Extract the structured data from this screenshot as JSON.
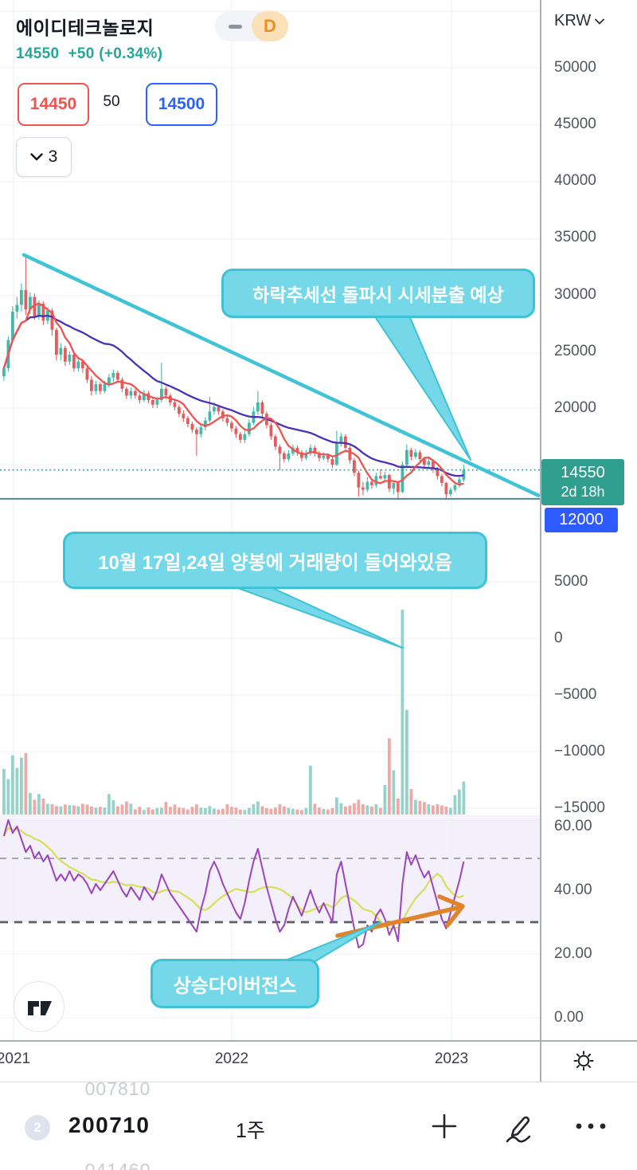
{
  "header": {
    "symbol": "에이디테크놀로지",
    "toggle": {
      "timeframe": "D"
    },
    "last_price": "14550",
    "change": "+50 (+0.34%)",
    "bid": "14450",
    "spread": "50",
    "ask": "14500",
    "object_count": "3"
  },
  "price_axis": {
    "currency": "KRW",
    "labels": [
      "50000",
      "45000",
      "40000",
      "35000",
      "30000",
      "25000",
      "20000"
    ],
    "current_badge": {
      "price": "14550",
      "countdown": "2d 18h"
    },
    "level_badge": "12000"
  },
  "volume_axis": {
    "labels": [
      "5000",
      "0",
      "−5000",
      "−10000",
      "−15000"
    ]
  },
  "oscillator_axis": {
    "labels": [
      "60.00",
      "40.00",
      "20.00",
      "0.00"
    ]
  },
  "time_axis": {
    "labels": [
      "2021",
      "2022",
      "2023"
    ]
  },
  "annotations": {
    "trend_callout": "하락추세선 돌파시 시세분출 예상",
    "volume_callout": "10월 17일,24일 양봉에 거래량이 들어와있음",
    "divergence_callout": "상승다이버전스"
  },
  "bottom_bar": {
    "prev_item": "007810",
    "badge": "2",
    "code": "200710",
    "interval": "1주",
    "next_item": "041460"
  },
  "colors": {
    "up": "#45b8ac",
    "down": "#e25d5d",
    "vol_up": "#95d2c9",
    "vol_down": "#f0a8a4",
    "ma_fast": "#ef5350",
    "ma_slow": "#4b30b8",
    "rsi": "#9b44bb",
    "rsi_signal": "#d6e05c",
    "trendline": "#3fc4d6",
    "callout_fill": "#74d8e8",
    "callout_border": "#3ec2d5",
    "badge_teal": "#2f9e8f",
    "badge_blue": "#2d5bff",
    "accent_up_text": "#26a69a",
    "support_line": "#4e8796",
    "arrow": "#e0832a",
    "band_bg": "rgba(147,112,219,0.10)",
    "bid": "#ef5350",
    "ask": "#2962ff"
  },
  "chart_data": {
    "type": "candlestick+volume+oscillator",
    "title": "에이디테크놀로지 weekly chart",
    "interval": "1 week",
    "x_axis_years": [
      "2021",
      "2022",
      "2023"
    ],
    "price_axis_ticks": [
      50000,
      45000,
      40000,
      35000,
      30000,
      25000,
      20000
    ],
    "current_price": 14550,
    "support_level": 12000,
    "trendline": {
      "start_price": 33500,
      "end_price": 12300,
      "style": "descending"
    },
    "oscillator_dashed_levels": [
      50,
      30
    ],
    "ma_periods": {
      "fast": 6,
      "slow": 24,
      "oscillator_signal": 9
    },
    "candles_ohlc": [
      [
        22800,
        23700,
        22400,
        23500
      ],
      [
        23500,
        26300,
        23200,
        26000
      ],
      [
        26000,
        29000,
        25800,
        28500
      ],
      [
        28500,
        29800,
        27900,
        29100
      ],
      [
        29100,
        31000,
        28500,
        30400
      ],
      [
        30400,
        33500,
        28200,
        28700
      ],
      [
        28700,
        30200,
        28300,
        29800
      ],
      [
        29800,
        30100,
        27800,
        28100
      ],
      [
        28100,
        29500,
        27800,
        29200
      ],
      [
        29200,
        29400,
        27300,
        27700
      ],
      [
        27700,
        28900,
        27400,
        28600
      ],
      [
        28600,
        28800,
        26400,
        26900
      ],
      [
        26900,
        27100,
        24200,
        24700
      ],
      [
        24700,
        25700,
        24200,
        25300
      ],
      [
        25300,
        25500,
        23700,
        24100
      ],
      [
        24100,
        25000,
        23800,
        24700
      ],
      [
        24700,
        24900,
        23200,
        23500
      ],
      [
        23500,
        24400,
        23200,
        24100
      ],
      [
        24100,
        24300,
        23100,
        23500
      ],
      [
        23500,
        23700,
        22200,
        22500
      ],
      [
        22500,
        22800,
        21100,
        21500
      ],
      [
        21500,
        22400,
        21200,
        22100
      ],
      [
        22100,
        22300,
        21200,
        21500
      ],
      [
        21500,
        22400,
        21300,
        22100
      ],
      [
        22100,
        23000,
        21800,
        22700
      ],
      [
        22700,
        23400,
        22300,
        23100
      ],
      [
        23100,
        23300,
        22200,
        22500
      ],
      [
        22500,
        22700,
        21400,
        21700
      ],
      [
        21700,
        21900,
        20800,
        21100
      ],
      [
        21100,
        21800,
        20800,
        21500
      ],
      [
        21500,
        21700,
        20800,
        21100
      ],
      [
        21100,
        21300,
        20400,
        20700
      ],
      [
        20700,
        21600,
        20500,
        21300
      ],
      [
        21300,
        21500,
        20400,
        20700
      ],
      [
        20700,
        20900,
        20000,
        20300
      ],
      [
        20300,
        21000,
        20000,
        20700
      ],
      [
        20700,
        24000,
        20500,
        21700
      ],
      [
        21700,
        21900,
        20800,
        21100
      ],
      [
        21100,
        21300,
        20200,
        20500
      ],
      [
        20500,
        20700,
        19800,
        20100
      ],
      [
        20100,
        20300,
        19200,
        19500
      ],
      [
        19500,
        19800,
        18800,
        19100
      ],
      [
        19100,
        19300,
        18300,
        18600
      ],
      [
        18600,
        18800,
        17800,
        18100
      ],
      [
        18100,
        18300,
        15800,
        17700
      ],
      [
        17700,
        18600,
        17400,
        18300
      ],
      [
        18300,
        19200,
        18000,
        18900
      ],
      [
        18900,
        21000,
        18700,
        19700
      ],
      [
        19700,
        20500,
        19400,
        20100
      ],
      [
        20100,
        20300,
        19400,
        19700
      ],
      [
        19700,
        19900,
        18800,
        19100
      ],
      [
        19100,
        19300,
        18400,
        18700
      ],
      [
        18700,
        18900,
        17900,
        18200
      ],
      [
        18200,
        18400,
        17400,
        17700
      ],
      [
        17700,
        17900,
        16900,
        17200
      ],
      [
        17200,
        18000,
        16900,
        17700
      ],
      [
        17700,
        19000,
        17500,
        18700
      ],
      [
        18700,
        20100,
        18500,
        19700
      ],
      [
        19700,
        21500,
        19400,
        20500
      ],
      [
        20500,
        20700,
        19200,
        19500
      ],
      [
        19500,
        19700,
        18200,
        18500
      ],
      [
        18500,
        18700,
        17200,
        17500
      ],
      [
        17500,
        17700,
        16300,
        16600
      ],
      [
        16600,
        16800,
        14500,
        16000
      ],
      [
        16000,
        16200,
        15200,
        15500
      ],
      [
        15500,
        16300,
        15300,
        16000
      ],
      [
        16000,
        16800,
        15800,
        16500
      ],
      [
        16500,
        16700,
        15800,
        16100
      ],
      [
        16100,
        16300,
        15300,
        15600
      ],
      [
        15600,
        16300,
        15400,
        16000
      ],
      [
        16000,
        16800,
        15800,
        16500
      ],
      [
        16500,
        16700,
        15700,
        16000
      ],
      [
        16000,
        16200,
        15300,
        15600
      ],
      [
        15600,
        16100,
        15400,
        15800
      ],
      [
        15800,
        16000,
        15200,
        15500
      ],
      [
        15500,
        15700,
        14700,
        15000
      ],
      [
        15000,
        18000,
        14900,
        17000
      ],
      [
        17000,
        17800,
        16600,
        17500
      ],
      [
        17500,
        17700,
        16200,
        16500
      ],
      [
        16500,
        16700,
        15100,
        15400
      ],
      [
        15400,
        15600,
        14000,
        14300
      ],
      [
        14300,
        14500,
        12200,
        13000
      ],
      [
        13000,
        13500,
        12300,
        12800
      ],
      [
        12800,
        13900,
        12600,
        13500
      ],
      [
        13500,
        13700,
        12900,
        13200
      ],
      [
        13200,
        14300,
        13000,
        14000
      ],
      [
        14000,
        14600,
        13700,
        13800
      ],
      [
        13800,
        14400,
        13500,
        14100
      ],
      [
        14100,
        14200,
        12600,
        12900
      ],
      [
        12900,
        13600,
        12400,
        13400
      ],
      [
        13400,
        13500,
        11900,
        12600
      ],
      [
        12600,
        15300,
        12500,
        15000
      ],
      [
        15000,
        16800,
        14700,
        16300
      ],
      [
        16300,
        16500,
        15400,
        15700
      ],
      [
        15700,
        16400,
        15500,
        16100
      ],
      [
        16100,
        16300,
        15200,
        15500
      ],
      [
        15500,
        15700,
        14700,
        15000
      ],
      [
        15000,
        15600,
        14700,
        15300
      ],
      [
        15300,
        15500,
        14300,
        14600
      ],
      [
        14600,
        14800,
        13700,
        14000
      ],
      [
        14000,
        14200,
        13100,
        13400
      ],
      [
        13400,
        13500,
        11900,
        12400
      ],
      [
        12400,
        13000,
        12200,
        12800
      ],
      [
        12800,
        13400,
        12600,
        13200
      ],
      [
        13200,
        13900,
        13000,
        13700
      ],
      [
        13700,
        15000,
        13500,
        14550
      ]
    ],
    "volume": [
      4000,
      3100,
      5200,
      4100,
      5000,
      5400,
      1900,
      1300,
      1800,
      1400,
      950,
      900,
      750,
      700,
      880,
      820,
      800,
      720,
      950,
      880,
      720,
      620,
      680,
      620,
      1800,
      1250,
      720,
      880,
      1150,
      950,
      460,
      680,
      400,
      620,
      440,
      580,
      600,
      1100,
      680,
      880,
      620,
      580,
      440,
      680,
      900,
      620,
      580,
      750,
      520,
      440,
      500,
      900,
      680,
      620,
      440,
      400,
      580,
      900,
      1150,
      730,
      580,
      500,
      620,
      900,
      730,
      580,
      500,
      440,
      400,
      580,
      4300,
      950,
      620,
      500,
      440,
      560,
      1500,
      1000,
      700,
      800,
      1000,
      1300,
      900,
      800,
      700,
      900,
      600,
      2600,
      6700,
      3900,
      1400,
      18000,
      9200,
      2250,
      1300,
      1200,
      1100,
      900,
      800,
      900,
      800,
      700,
      600,
      1700,
      2200,
      2900
    ],
    "rsi": [
      57,
      62,
      58,
      60,
      56,
      52,
      54,
      50,
      52,
      49,
      51,
      47,
      43,
      45,
      43,
      46,
      43,
      45,
      44,
      42,
      39,
      42,
      40,
      42,
      44,
      46,
      43,
      40,
      38,
      41,
      39,
      37,
      41,
      39,
      37,
      40,
      45,
      42,
      39,
      37,
      35,
      33,
      31,
      29,
      27,
      34,
      39,
      46,
      49,
      46,
      42,
      39,
      36,
      33,
      31,
      36,
      43,
      49,
      53,
      47,
      41,
      36,
      31,
      27,
      29,
      34,
      38,
      35,
      32,
      36,
      40,
      36,
      33,
      36,
      33,
      30,
      45,
      49,
      42,
      35,
      28,
      22,
      23,
      29,
      27,
      32,
      34,
      31,
      26,
      29,
      24,
      42,
      52,
      48,
      51,
      47,
      44,
      46,
      41,
      36,
      31,
      28,
      33,
      38,
      43,
      49
    ]
  }
}
